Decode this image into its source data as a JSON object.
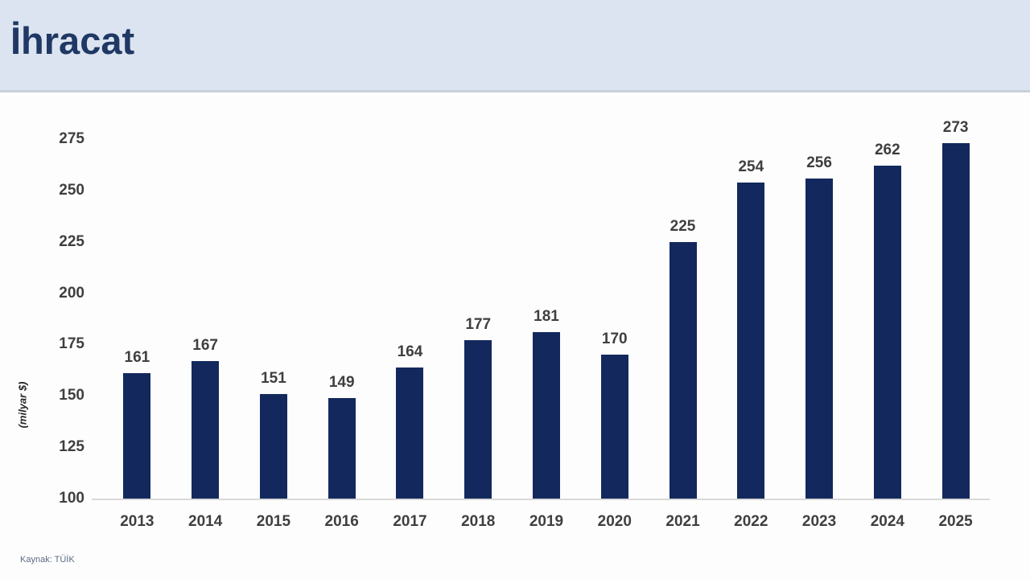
{
  "header": {
    "title": "İhracat"
  },
  "footer": {
    "source": "Kaynak: TÜİK"
  },
  "colors": {
    "header_bg": "#dce4f1",
    "header_border": "#c9cfd9",
    "title": "#1f3864",
    "bar": "#13295d",
    "label": "#3f3f3f",
    "axis_line": "#d8d8d8",
    "ylabel": "#262626",
    "source": "#5c6b82"
  },
  "chart_data": {
    "type": "bar",
    "title": "İhracat",
    "categories": [
      "2013",
      "2014",
      "2015",
      "2016",
      "2017",
      "2018",
      "2019",
      "2020",
      "2021",
      "2022",
      "2023",
      "2024",
      "2025"
    ],
    "values": [
      161,
      167,
      151,
      149,
      164,
      177,
      181,
      170,
      225,
      254,
      256,
      262,
      273
    ],
    "xlabel": "",
    "ylabel": "(milyar $)",
    "ylim": [
      100,
      275
    ],
    "y_ticks": [
      100,
      125,
      150,
      175,
      200,
      225,
      250,
      275
    ],
    "grid": false,
    "legend": "none",
    "data_labels": true
  }
}
